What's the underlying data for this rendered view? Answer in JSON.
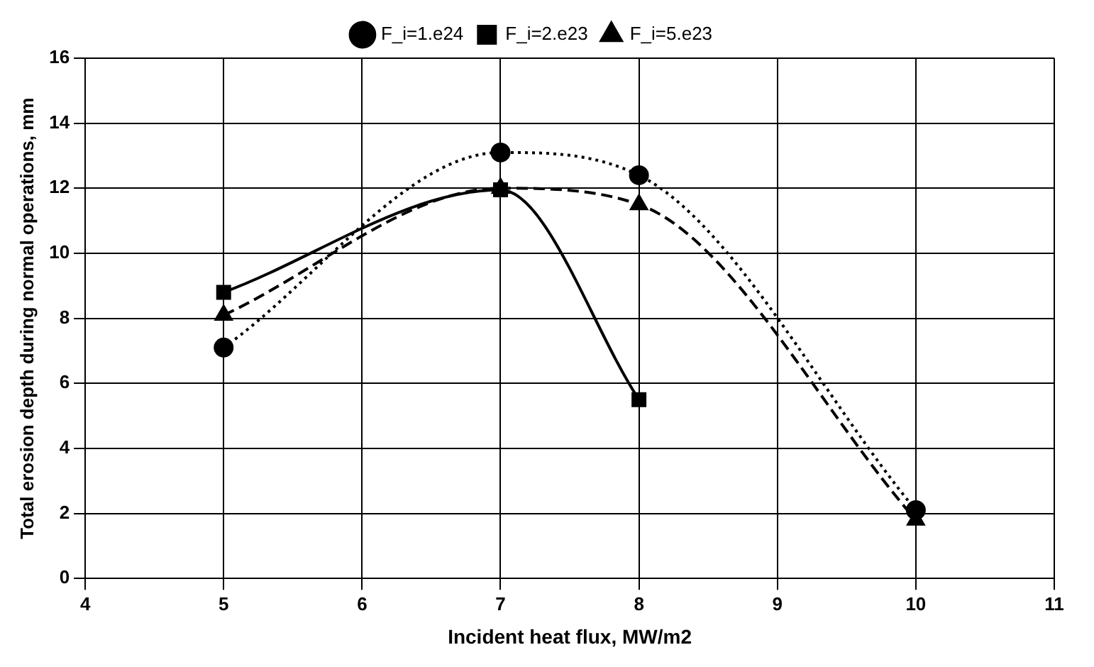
{
  "chart_data": {
    "type": "line",
    "xlabel": "Incident heat flux, MW/m2",
    "ylabel": "Total erosion depth during normal operations, mm",
    "xlim": [
      4,
      11
    ],
    "xticks": [
      4,
      5,
      6,
      7,
      8,
      9,
      10,
      11
    ],
    "ylim": [
      0,
      16
    ],
    "yticks": [
      0,
      2,
      4,
      6,
      8,
      10,
      12,
      14,
      16
    ],
    "grid": true,
    "legend": "top",
    "series": [
      {
        "name": "F_i=1.e24",
        "color": "#000000",
        "x": [
          5,
          7,
          8,
          10
        ],
        "values": [
          7.1,
          13.1,
          12.4,
          2.1
        ],
        "marker": "circle",
        "line_style": "dotted"
      },
      {
        "name": "F_i=2.e23",
        "color": "#000000",
        "x": [
          5,
          7,
          8
        ],
        "values": [
          8.8,
          11.95,
          5.5
        ],
        "marker": "square",
        "line_style": "solid"
      },
      {
        "name": "F_i=5.e23",
        "color": "#000000",
        "x": [
          5,
          7,
          8,
          10
        ],
        "values": [
          8.1,
          12.0,
          11.5,
          1.8
        ],
        "marker": "triangle",
        "line_style": "dashed"
      }
    ]
  }
}
